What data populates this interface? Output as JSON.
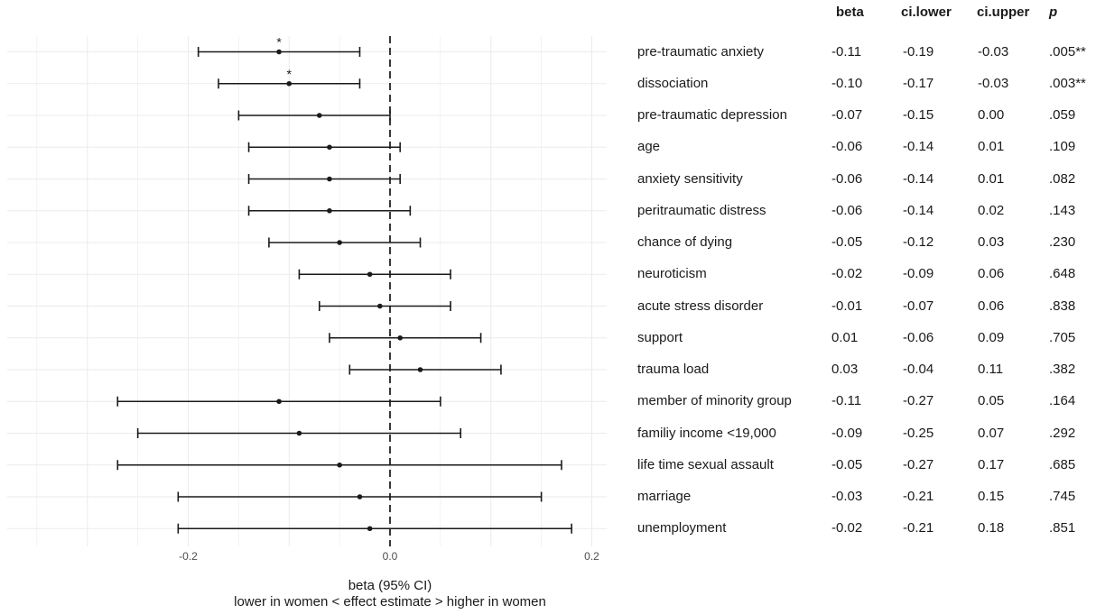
{
  "chart_data": {
    "type": "forest",
    "xlabel": "beta (95% CI)",
    "xlabel_sub": "lower in women < effect estimate > higher in women",
    "xlim": [
      -0.375,
      0.22
    ],
    "xticks": [
      -0.2,
      0.0,
      0.2
    ],
    "xtick_labels": [
      "-0.2",
      "0.0",
      "0.2"
    ],
    "reference_line": 0,
    "grid": true,
    "columns": [
      "beta",
      "ci.lower",
      "ci.upper",
      "p"
    ],
    "rows": [
      {
        "label": "pre-traumatic anxiety",
        "beta": -0.11,
        "lower": -0.19,
        "upper": -0.03,
        "beta_text": "-0.11",
        "lower_text": "-0.19",
        "upper_text": "-0.03",
        "p_text": ".005**",
        "marker": "*"
      },
      {
        "label": "dissociation",
        "beta": -0.1,
        "lower": -0.17,
        "upper": -0.03,
        "beta_text": "-0.10",
        "lower_text": "-0.17",
        "upper_text": "-0.03",
        "p_text": ".003**",
        "marker": "*"
      },
      {
        "label": "pre-traumatic depression",
        "beta": -0.07,
        "lower": -0.15,
        "upper": 0.0,
        "beta_text": "-0.07",
        "lower_text": "-0.15",
        "upper_text": "0.00",
        "p_text": ".059",
        "marker": ""
      },
      {
        "label": "age",
        "beta": -0.06,
        "lower": -0.14,
        "upper": 0.01,
        "beta_text": "-0.06",
        "lower_text": "-0.14",
        "upper_text": "0.01",
        "p_text": ".109",
        "marker": ""
      },
      {
        "label": "anxiety sensitivity",
        "beta": -0.06,
        "lower": -0.14,
        "upper": 0.01,
        "beta_text": "-0.06",
        "lower_text": "-0.14",
        "upper_text": "0.01",
        "p_text": ".082",
        "marker": ""
      },
      {
        "label": "peritraumatic distress",
        "beta": -0.06,
        "lower": -0.14,
        "upper": 0.02,
        "beta_text": "-0.06",
        "lower_text": "-0.14",
        "upper_text": "0.02",
        "p_text": ".143",
        "marker": ""
      },
      {
        "label": "chance of dying",
        "beta": -0.05,
        "lower": -0.12,
        "upper": 0.03,
        "beta_text": "-0.05",
        "lower_text": "-0.12",
        "upper_text": "0.03",
        "p_text": ".230",
        "marker": ""
      },
      {
        "label": "neuroticism",
        "beta": -0.02,
        "lower": -0.09,
        "upper": 0.06,
        "beta_text": "-0.02",
        "lower_text": "-0.09",
        "upper_text": "0.06",
        "p_text": ".648",
        "marker": ""
      },
      {
        "label": "acute stress disorder",
        "beta": -0.01,
        "lower": -0.07,
        "upper": 0.06,
        "beta_text": "-0.01",
        "lower_text": "-0.07",
        "upper_text": "0.06",
        "p_text": ".838",
        "marker": ""
      },
      {
        "label": "support",
        "beta": 0.01,
        "lower": -0.06,
        "upper": 0.09,
        "beta_text": "0.01",
        "lower_text": "-0.06",
        "upper_text": "0.09",
        "p_text": ".705",
        "marker": ""
      },
      {
        "label": "trauma load",
        "beta": 0.03,
        "lower": -0.04,
        "upper": 0.11,
        "beta_text": "0.03",
        "lower_text": "-0.04",
        "upper_text": "0.11",
        "p_text": ".382",
        "marker": ""
      },
      {
        "label": "member of minority group",
        "beta": -0.11,
        "lower": -0.27,
        "upper": 0.05,
        "beta_text": "-0.11",
        "lower_text": "-0.27",
        "upper_text": "0.05",
        "p_text": ".164",
        "marker": ""
      },
      {
        "label": "familiy income <19,000",
        "beta": -0.09,
        "lower": -0.25,
        "upper": 0.07,
        "beta_text": "-0.09",
        "lower_text": "-0.25",
        "upper_text": "0.07",
        "p_text": ".292",
        "marker": ""
      },
      {
        "label": "life time sexual assault",
        "beta": -0.05,
        "lower": -0.27,
        "upper": 0.17,
        "beta_text": "-0.05",
        "lower_text": "-0.27",
        "upper_text": "0.17",
        "p_text": ".685",
        "marker": ""
      },
      {
        "label": "marriage",
        "beta": -0.03,
        "lower": -0.21,
        "upper": 0.15,
        "beta_text": "-0.03",
        "lower_text": "-0.21",
        "upper_text": "0.15",
        "p_text": ".745",
        "marker": ""
      },
      {
        "label": "unemployment",
        "beta": -0.02,
        "lower": -0.21,
        "upper": 0.18,
        "beta_text": "-0.02",
        "lower_text": "-0.21",
        "upper_text": "0.18",
        "p_text": ".851",
        "marker": ""
      }
    ]
  },
  "colors": {
    "ink": "#1a1a1a",
    "grid": "#ebebeb",
    "reference": "#222222"
  }
}
